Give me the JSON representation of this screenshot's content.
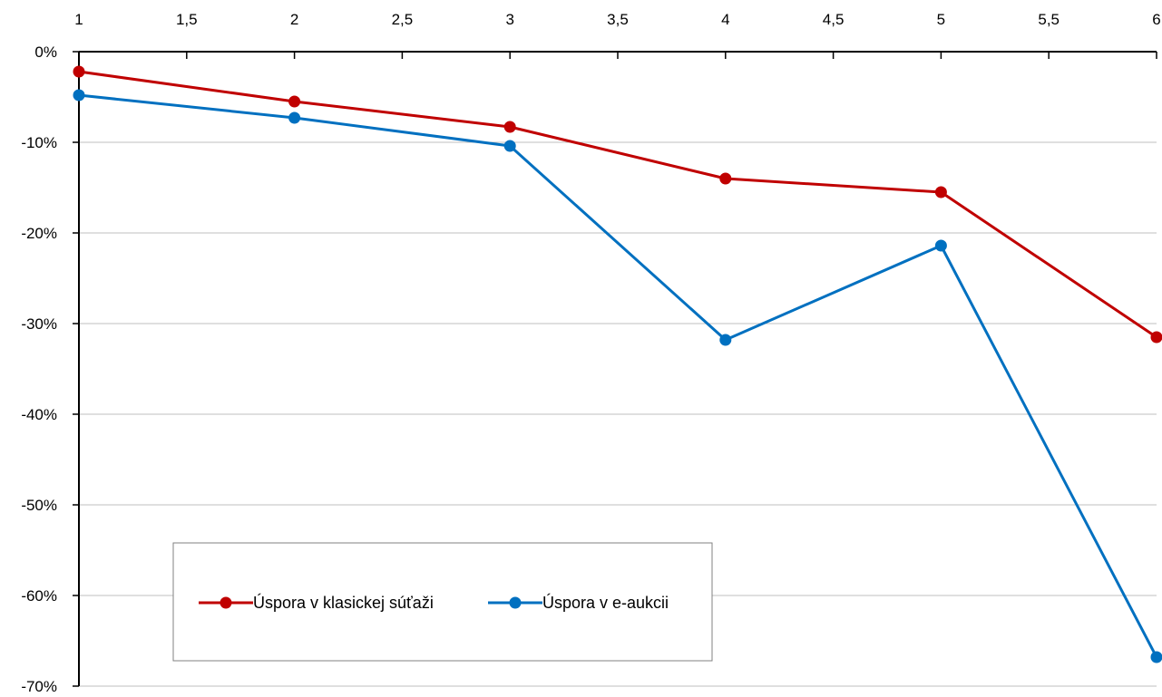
{
  "chart_data": {
    "type": "line",
    "title": "",
    "xlabel": "",
    "ylabel": "",
    "x_axis_position": "top",
    "xlim": [
      1,
      6
    ],
    "ylim": [
      -70,
      0
    ],
    "x_ticks": [
      1,
      1.5,
      2,
      2.5,
      3,
      3.5,
      4,
      4.5,
      5,
      5.5,
      6
    ],
    "x_tick_labels": [
      "1",
      "1,5",
      "2",
      "2,5",
      "3",
      "3,5",
      "4",
      "4,5",
      "5",
      "5,5",
      "6"
    ],
    "y_ticks": [
      0,
      -10,
      -20,
      -30,
      -40,
      -50,
      -60,
      -70
    ],
    "y_tick_labels": [
      "0%",
      "-10%",
      "-20%",
      "-30%",
      "-40%",
      "-50%",
      "-60%",
      "-70%"
    ],
    "grid": "horizontal",
    "legend_position": "bottom-left",
    "x": [
      1,
      2,
      3,
      4,
      5,
      6
    ],
    "series": [
      {
        "name": "Úspora v klasickej súťaži",
        "color": "#C00000",
        "values": [
          -2.2,
          -5.5,
          -8.3,
          -14.0,
          -15.5,
          -31.5
        ]
      },
      {
        "name": "Úspora v e-aukcii",
        "color": "#0070C0",
        "values": [
          -4.8,
          -7.3,
          -10.4,
          -31.8,
          -21.4,
          -66.8
        ]
      }
    ]
  }
}
